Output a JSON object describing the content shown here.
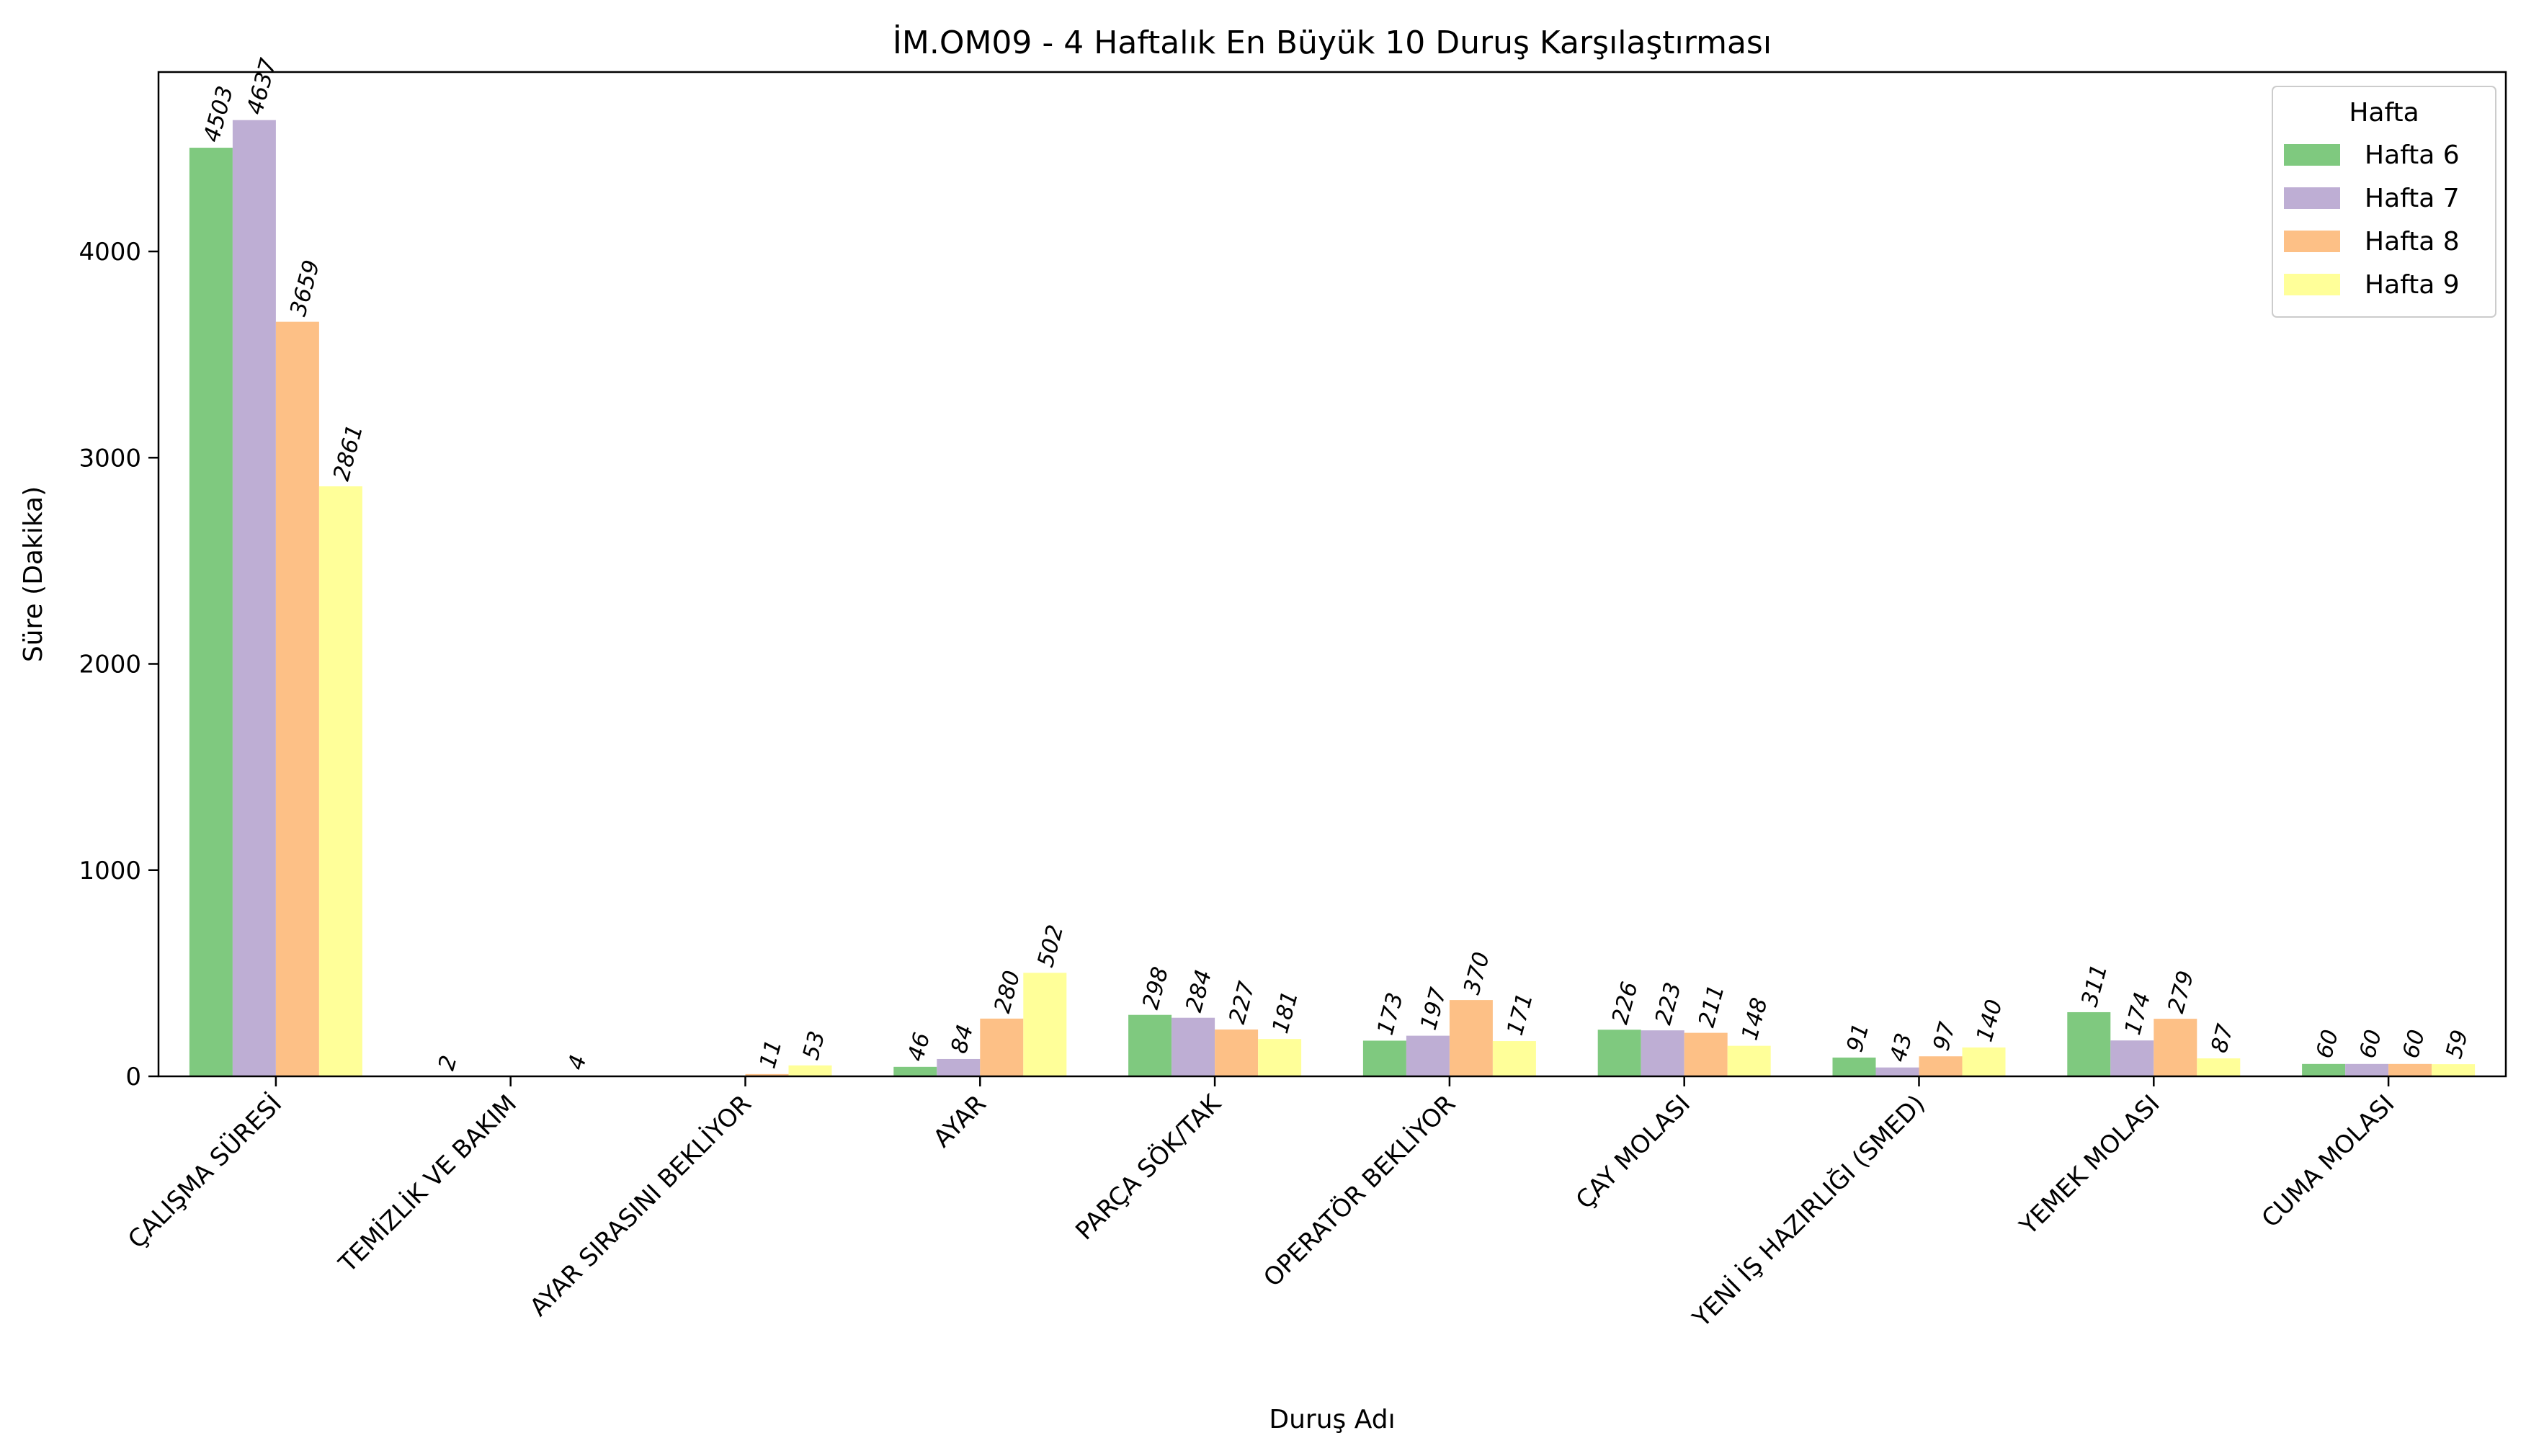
{
  "chart_data": {
    "type": "bar",
    "title": "İM.OM09 - 4 Haftalık En Büyük 10 Duruş Karşılaştırması",
    "xlabel": "Duruş Adı",
    "ylabel": "Süre (Dakika)",
    "ylim": [
      0,
      4870
    ],
    "yticks": [
      0,
      1000,
      2000,
      3000,
      4000
    ],
    "grid": false,
    "legend": {
      "title": "Hafta",
      "placement": "top-right"
    },
    "categories": [
      "ÇALIŞMA SÜRESİ",
      "TEMİZLİK VE BAKIM",
      "AYAR SIRASINI BEKLİYOR",
      "AYAR",
      "PARÇA SÖK/TAK",
      "OPERATÖR BEKLİYOR",
      "ÇAY MOLASI",
      "YENİ İŞ HAZIRLIĞI (SMED)",
      "YEMEK MOLASI",
      "CUMA  MOLASI"
    ],
    "series": [
      {
        "name": "Hafta 6",
        "color": "#7fc97f",
        "values": [
          4503,
          2,
          null,
          46,
          298,
          173,
          226,
          91,
          311,
          60
        ]
      },
      {
        "name": "Hafta 7",
        "color": "#beaed4",
        "values": [
          4637,
          null,
          null,
          84,
          284,
          197,
          223,
          43,
          174,
          60
        ]
      },
      {
        "name": "Hafta 8",
        "color": "#fdc086",
        "values": [
          3659,
          null,
          11,
          280,
          227,
          370,
          211,
          97,
          279,
          60
        ]
      },
      {
        "name": "Hafta 9",
        "color": "#ffff99",
        "values": [
          2861,
          4,
          53,
          502,
          181,
          171,
          148,
          140,
          87,
          59
        ]
      }
    ],
    "value_labels": [
      [
        "4503",
        "2",
        null,
        "46",
        "298",
        "173",
        "226",
        "91",
        "311",
        "60"
      ],
      [
        "4637",
        null,
        null,
        "84",
        "284",
        "197",
        "223",
        "43",
        "174",
        "60"
      ],
      [
        "3659",
        null,
        "11",
        "280",
        "227",
        "370",
        "211",
        "97",
        "279",
        "60"
      ],
      [
        "2861",
        "4",
        "53",
        "502",
        "181",
        "171",
        "148",
        "140",
        "87",
        "59"
      ]
    ]
  }
}
